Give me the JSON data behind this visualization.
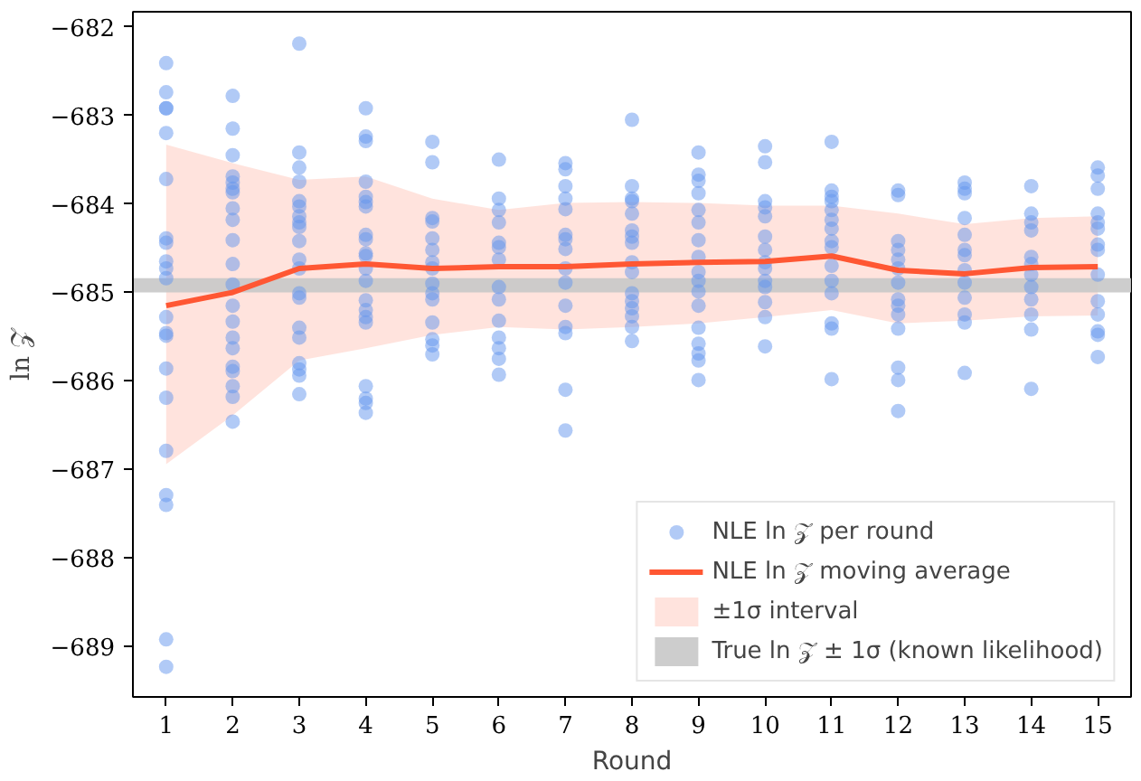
{
  "chart_data": {
    "type": "scatter",
    "xlabel": "Round",
    "ylabel": "ln 𝒵",
    "xlim": [
      0.5,
      15.5
    ],
    "xticks": [
      1,
      2,
      3,
      4,
      5,
      6,
      7,
      8,
      9,
      10,
      11,
      12,
      13,
      14,
      15
    ],
    "ylim": [
      -689.57,
      -681.83
    ],
    "yticks": [
      {
        "value": -689,
        "label": "−689"
      },
      {
        "value": -688,
        "label": "−688"
      },
      {
        "value": -687,
        "label": "−687"
      },
      {
        "value": -686,
        "label": "−686"
      },
      {
        "value": -685,
        "label": "−685"
      },
      {
        "value": -684,
        "label": "−684"
      },
      {
        "value": -683,
        "label": "−683"
      },
      {
        "value": -682,
        "label": "−682"
      }
    ],
    "grid": false,
    "annotations": [
      "±1σ interval"
    ],
    "legend": "bottom right",
    "series": [
      {
        "name": "NLE ln 𝒵 per round",
        "color": "#6495ed",
        "marker": "circle",
        "x": [
          1,
          1,
          1,
          1,
          1,
          1,
          1,
          1,
          1,
          1,
          1,
          1,
          1,
          1,
          1,
          1,
          1,
          1,
          1,
          1,
          1,
          2,
          2,
          2,
          2,
          2,
          2,
          2,
          2,
          2,
          2,
          2,
          2,
          2,
          2,
          2,
          2,
          2,
          2,
          2,
          2,
          2,
          3,
          3,
          3,
          3,
          3,
          3,
          3,
          3,
          3,
          3,
          3,
          3,
          3,
          3,
          3,
          3,
          3,
          3,
          3,
          3,
          4,
          4,
          4,
          4,
          4,
          4,
          4,
          4,
          4,
          4,
          4,
          4,
          4,
          4,
          4,
          4,
          4,
          4,
          4,
          4,
          4,
          5,
          5,
          5,
          5,
          5,
          5,
          5,
          5,
          5,
          5,
          5,
          5,
          5,
          5,
          5,
          6,
          6,
          6,
          6,
          6,
          6,
          6,
          6,
          6,
          6,
          6,
          6,
          6,
          6,
          7,
          7,
          7,
          7,
          7,
          7,
          7,
          7,
          7,
          7,
          7,
          7,
          7,
          7,
          7,
          8,
          8,
          8,
          8,
          8,
          8,
          8,
          8,
          8,
          8,
          8,
          8,
          8,
          8,
          8,
          8,
          9,
          9,
          9,
          9,
          9,
          9,
          9,
          9,
          9,
          9,
          9,
          9,
          9,
          9,
          9,
          9,
          9,
          10,
          10,
          10,
          10,
          10,
          10,
          10,
          10,
          10,
          10,
          10,
          10,
          10,
          10,
          11,
          11,
          11,
          11,
          11,
          11,
          11,
          11,
          11,
          11,
          11,
          11,
          11,
          11,
          11,
          12,
          12,
          12,
          12,
          12,
          12,
          12,
          12,
          12,
          12,
          12,
          12,
          12,
          12,
          13,
          13,
          13,
          13,
          13,
          13,
          13,
          13,
          13,
          13,
          13,
          13,
          13,
          14,
          14,
          14,
          14,
          14,
          14,
          14,
          14,
          14,
          14,
          14,
          14,
          15,
          15,
          15,
          15,
          15,
          15,
          15,
          15,
          15,
          15,
          15,
          15,
          15,
          15
        ],
        "values": [
          -682.41,
          -682.74,
          -682.92,
          -682.92,
          -683.2,
          -683.72,
          -684.39,
          -684.44,
          -684.65,
          -684.73,
          -684.84,
          -685.28,
          -685.46,
          -685.49,
          -685.86,
          -686.19,
          -686.79,
          -687.29,
          -687.4,
          -688.92,
          -689.23,
          -682.78,
          -683.15,
          -683.45,
          -683.69,
          -683.76,
          -683.83,
          -683.87,
          -684.05,
          -684.18,
          -684.41,
          -684.68,
          -684.91,
          -685.15,
          -685.33,
          -685.51,
          -685.63,
          -685.84,
          -685.89,
          -686.06,
          -686.18,
          -686.46,
          -682.19,
          -683.42,
          -683.59,
          -683.75,
          -683.97,
          -684.03,
          -684.14,
          -684.21,
          -684.26,
          -684.42,
          -684.63,
          -684.73,
          -685.01,
          -685.06,
          -685.4,
          -685.51,
          -685.8,
          -685.87,
          -685.94,
          -686.15,
          -682.92,
          -683.24,
          -683.29,
          -683.75,
          -683.92,
          -683.98,
          -684.03,
          -684.35,
          -684.4,
          -684.56,
          -684.59,
          -684.73,
          -684.87,
          -685.09,
          -685.2,
          -685.28,
          -685.34,
          -686.06,
          -686.2,
          -686.25,
          -686.36,
          -683.3,
          -683.53,
          -684.16,
          -684.2,
          -684.39,
          -684.52,
          -684.66,
          -684.73,
          -684.9,
          -685.01,
          -685.08,
          -685.34,
          -685.53,
          -685.6,
          -685.7,
          -683.5,
          -683.94,
          -684.07,
          -684.21,
          -684.44,
          -684.49,
          -684.63,
          -684.94,
          -685.08,
          -685.32,
          -685.51,
          -685.63,
          -685.75,
          -685.93,
          -683.54,
          -683.61,
          -683.8,
          -683.94,
          -684.06,
          -684.35,
          -684.4,
          -684.51,
          -684.73,
          -684.89,
          -685.15,
          -685.39,
          -685.46,
          -686.1,
          -686.56,
          -683.05,
          -683.8,
          -683.94,
          -683.97,
          -684.11,
          -684.3,
          -684.37,
          -684.44,
          -684.66,
          -684.77,
          -685.01,
          -685.1,
          -685.18,
          -685.27,
          -685.39,
          -685.55,
          -683.42,
          -683.67,
          -683.74,
          -683.88,
          -684.07,
          -684.21,
          -684.41,
          -684.6,
          -684.77,
          -684.87,
          -684.99,
          -685.15,
          -685.4,
          -685.58,
          -685.69,
          -685.77,
          -685.99,
          -683.35,
          -683.53,
          -683.97,
          -684.04,
          -684.14,
          -684.37,
          -684.52,
          -684.66,
          -684.73,
          -684.87,
          -684.94,
          -685.11,
          -685.28,
          -685.61,
          -683.3,
          -683.85,
          -683.92,
          -683.97,
          -684.07,
          -684.18,
          -684.28,
          -684.42,
          -684.49,
          -684.7,
          -684.87,
          -685.01,
          -685.35,
          -685.41,
          -685.98,
          -683.85,
          -683.9,
          -684.42,
          -684.52,
          -684.63,
          -684.73,
          -684.89,
          -685.08,
          -685.15,
          -685.25,
          -685.41,
          -685.85,
          -685.99,
          -686.34,
          -683.76,
          -683.83,
          -683.88,
          -684.16,
          -684.35,
          -684.52,
          -684.58,
          -684.75,
          -684.89,
          -685.06,
          -685.25,
          -685.34,
          -685.91,
          -683.8,
          -684.11,
          -684.21,
          -684.3,
          -684.6,
          -684.68,
          -684.8,
          -684.94,
          -685.08,
          -685.25,
          -685.42,
          -686.09,
          -683.59,
          -683.68,
          -683.83,
          -684.11,
          -684.21,
          -684.28,
          -684.46,
          -684.52,
          -684.8,
          -685.1,
          -685.25,
          -685.44,
          -685.48,
          -685.73
        ]
      },
      {
        "type": "line",
        "name": "NLE ln 𝒵 moving average",
        "color": "#ff5733",
        "line_style": "solid",
        "x": [
          1,
          2,
          3,
          4,
          5,
          6,
          7,
          8,
          9,
          10,
          11,
          12,
          13,
          14,
          15
        ],
        "values": [
          -685.15,
          -685.0,
          -684.73,
          -684.68,
          -684.73,
          -684.71,
          -684.71,
          -684.68,
          -684.66,
          -684.65,
          -684.59,
          -684.75,
          -684.79,
          -684.72,
          -684.71
        ],
        "lower": [
          -686.94,
          -686.39,
          -685.77,
          -685.63,
          -685.48,
          -685.39,
          -685.42,
          -685.39,
          -685.35,
          -685.28,
          -685.2,
          -685.35,
          -685.32,
          -685.27,
          -685.26
        ],
        "upper": [
          -683.33,
          -683.54,
          -683.73,
          -683.69,
          -683.94,
          -684.07,
          -683.99,
          -683.98,
          -683.99,
          -684.02,
          -684.02,
          -684.11,
          -684.23,
          -684.16,
          -684.14
        ]
      }
    ],
    "bands": [
      {
        "axis": "y",
        "from": -685.0,
        "to": -684.84,
        "label": "True ln 𝒵 ± 1σ (known likelihood)",
        "color": "#c8c8c8"
      }
    ]
  }
}
